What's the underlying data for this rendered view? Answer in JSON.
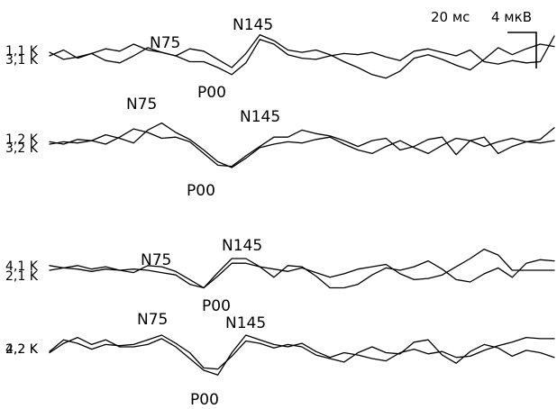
{
  "chart_data": {
    "type": "line",
    "title": "",
    "scale_bar": {
      "time_label": "20 мс",
      "amplitude_label": "4 мкВ"
    },
    "colors": {
      "trace": "#000000",
      "background": "#ffffff"
    },
    "grid": false,
    "legend": "none",
    "panels": [
      {
        "id": "1",
        "channel_labels": {
          "primary": "1,1 K",
          "secondary": "3,1 K"
        },
        "peaks": [
          "N75",
          "P00",
          "N145"
        ],
        "series": [
          {
            "values": [
              0.0,
              0.5,
              -0.2,
              0.2,
              0.6,
              0.4,
              1.0,
              0.5,
              0.3,
              0.0,
              0.6,
              0.4,
              -0.3,
              -1.0,
              0.2,
              1.8,
              1.3,
              0.5,
              0.3,
              0.5,
              0.1,
              -0.5,
              -1.0,
              -1.6,
              -1.9,
              -1.3,
              -0.2,
              0.1,
              -0.3,
              -0.8,
              -1.2,
              -0.3,
              0.7,
              0.1,
              0.6,
              1.0,
              0.8
            ]
          },
          {
            "values": [
              0.3,
              -0.3,
              -0.1,
              0.2,
              -0.4,
              -0.6,
              0.0,
              0.7,
              0.3,
              0.0,
              -0.5,
              -0.5,
              -1.0,
              -1.6,
              -0.6,
              1.4,
              1.0,
              0.1,
              -0.2,
              -0.3,
              0.0,
              0.2,
              0.1,
              0.3,
              -0.1,
              -0.4,
              0.4,
              0.6,
              0.3,
              0.0,
              0.5,
              -0.5,
              -0.7,
              -0.4,
              -0.6,
              -0.5,
              1.7
            ]
          }
        ]
      },
      {
        "id": "2",
        "channel_labels": {
          "primary": "1,2 K",
          "secondary": "3,2 K"
        },
        "peaks": [
          "N75",
          "P00",
          "N145"
        ],
        "series": [
          {
            "values": [
              0.2,
              0.0,
              0.4,
              0.3,
              0.8,
              0.5,
              0.1,
              1.2,
              1.8,
              1.0,
              0.4,
              -0.5,
              -1.5,
              -2.0,
              -1.2,
              -0.3,
              0.0,
              0.2,
              0.1,
              0.4,
              0.6,
              0.0,
              -0.5,
              -0.8,
              -0.2,
              0.3,
              -0.3,
              -0.8,
              -0.1,
              0.5,
              0.3,
              -0.2,
              0.2,
              0.5,
              0.2,
              0.1,
              0.3
            ]
          },
          {
            "values": [
              0.0,
              0.2,
              0.1,
              0.3,
              0.0,
              0.6,
              1.3,
              1.0,
              0.5,
              0.6,
              0.2,
              -0.8,
              -1.8,
              -1.9,
              -1.0,
              -0.2,
              0.6,
              0.6,
              1.2,
              0.9,
              0.7,
              0.3,
              -0.2,
              0.3,
              0.5,
              -0.5,
              -0.2,
              0.4,
              0.6,
              -0.9,
              0.3,
              0.6,
              -0.8,
              -0.2,
              0.2,
              0.4,
              1.4
            ]
          }
        ]
      },
      {
        "id": "3",
        "channel_labels": {
          "primary": "4,1 K",
          "secondary": "2,1 K"
        },
        "peaks": [
          "N75",
          "P00",
          "N145"
        ],
        "series": [
          {
            "values": [
              0.0,
              0.2,
              0.4,
              0.1,
              0.3,
              0.0,
              -0.2,
              0.4,
              0.3,
              -0.1,
              -0.8,
              -1.5,
              -0.5,
              0.6,
              0.6,
              0.3,
              0.1,
              -0.1,
              0.2,
              -0.2,
              -0.6,
              -0.3,
              0.1,
              0.3,
              0.5,
              -0.3,
              -0.8,
              -0.7,
              -0.4,
              0.3,
              1.0,
              1.8,
              1.3,
              0.0,
              0.0,
              0.0,
              0.0
            ]
          },
          {
            "values": [
              0.4,
              0.2,
              0.1,
              -0.1,
              0.1,
              0.0,
              0.1,
              0.0,
              -0.2,
              -0.4,
              -1.2,
              -1.5,
              -0.2,
              1.0,
              1.0,
              0.3,
              -0.6,
              0.4,
              0.3,
              -0.5,
              -1.5,
              -1.5,
              -1.2,
              -0.4,
              0.2,
              0.0,
              0.3,
              0.8,
              0.1,
              -0.8,
              -1.0,
              -0.3,
              0.2,
              -0.6,
              0.6,
              0.9,
              0.8
            ]
          }
        ]
      },
      {
        "id": "4",
        "channel_labels": {
          "primary": "4,2 K",
          "secondary": "2,2 K"
        },
        "peaks": [
          "N75",
          "P00",
          "N145"
        ],
        "series": [
          {
            "values": [
              -0.5,
              0.3,
              0.8,
              0.2,
              0.6,
              0.0,
              0.0,
              0.2,
              0.7,
              0.0,
              -1.0,
              -2.0,
              -2.4,
              -0.5,
              1.0,
              0.6,
              0.2,
              0.0,
              0.3,
              -0.4,
              -0.9,
              -0.5,
              -0.7,
              -1.0,
              -1.2,
              -0.5,
              -0.2,
              -0.6,
              -0.4,
              -0.9,
              -0.8,
              -0.3,
              0.1,
              0.4,
              0.8,
              0.7,
              0.7
            ]
          },
          {
            "values": [
              -0.4,
              0.6,
              0.3,
              -0.2,
              0.2,
              0.1,
              0.2,
              0.6,
              1.0,
              0.3,
              -0.5,
              -1.8,
              -1.9,
              -0.8,
              0.5,
              0.3,
              -0.1,
              0.2,
              0.0,
              -0.7,
              -1.0,
              -1.3,
              -0.5,
              0.0,
              -0.5,
              -0.6,
              0.4,
              0.6,
              -0.7,
              -1.4,
              -0.4,
              0.2,
              -0.1,
              -0.8,
              -0.3,
              -0.5,
              -0.9
            ]
          }
        ]
      }
    ]
  }
}
